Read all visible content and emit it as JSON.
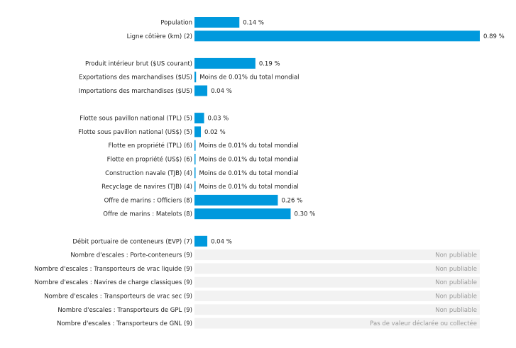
{
  "chart_data": {
    "type": "bar",
    "orientation": "horizontal",
    "units": "%",
    "xlim": [
      0,
      0.89
    ],
    "bar_color": "#0099dd",
    "na_background": "#f2f2f2",
    "rows": [
      {
        "label": "Population",
        "value": 0.14,
        "text": "0.14 %",
        "group": 0
      },
      {
        "label": "Ligne côtière (km) (2)",
        "value": 0.89,
        "text": "0.89 %",
        "group": 0
      },
      {
        "label": "Produit intérieur brut ($US courant)",
        "value": 0.19,
        "text": "0.19 %",
        "group": 1
      },
      {
        "label": "Exportations des marchandises ($US)",
        "value": 0.005,
        "text": "Moins de 0.01% du total mondial",
        "group": 1
      },
      {
        "label": "Importations des marchandises ($US)",
        "value": 0.04,
        "text": "0.04 %",
        "group": 1
      },
      {
        "label": "Flotte sous pavillon national (TPL) (5)",
        "value": 0.03,
        "text": "0.03 %",
        "group": 2
      },
      {
        "label": "Flotte sous pavillon national (US$) (5)",
        "value": 0.02,
        "text": "0.02 %",
        "group": 2
      },
      {
        "label": "Flotte en propriété (TPL) (6)",
        "value": 0.003,
        "text": "Moins de 0.01% du total mondial",
        "group": 2
      },
      {
        "label": "Flotte en propriété (US$) (6)",
        "value": 0.003,
        "text": "Moins de 0.01% du total mondial",
        "group": 2
      },
      {
        "label": "Construction navale (TJB) (4)",
        "value": 0.002,
        "text": "Moins de 0.01% du total mondial",
        "group": 2
      },
      {
        "label": "Recyclage de navires (TJB) (4)",
        "value": 0.002,
        "text": "Moins de 0.01% du total mondial",
        "group": 2
      },
      {
        "label": "Offre de marins : Officiers (8)",
        "value": 0.26,
        "text": "0.26 %",
        "group": 2
      },
      {
        "label": "Offre de marins : Matelots (8)",
        "value": 0.3,
        "text": "0.30 %",
        "group": 2
      },
      {
        "label": "Débit portuaire de conteneurs (EVP) (7)",
        "value": 0.04,
        "text": "0.04 %",
        "group": 3
      },
      {
        "label": "Nombre d'escales : Porte-conteneurs (9)",
        "value": null,
        "text": "Non publiable",
        "group": 3
      },
      {
        "label": "Nombre d'escales : Transporteurs de vrac liquide (9)",
        "value": null,
        "text": "Non publiable",
        "group": 3
      },
      {
        "label": "Nombre d'escales : Navires de charge classiques (9)",
        "value": null,
        "text": "Non publiable",
        "group": 3
      },
      {
        "label": "Nombre d'escales : Transporteurs de vrac sec (9)",
        "value": null,
        "text": "Non publiable",
        "group": 3
      },
      {
        "label": "Nombre d'escales : Transporteurs de GPL (9)",
        "value": null,
        "text": "Non publiable",
        "group": 3
      },
      {
        "label": "Nombre d'escales : Transporteurs de GNL (9)",
        "value": null,
        "text": "Pas de valeur déclarée ou collectée",
        "group": 3
      }
    ]
  }
}
